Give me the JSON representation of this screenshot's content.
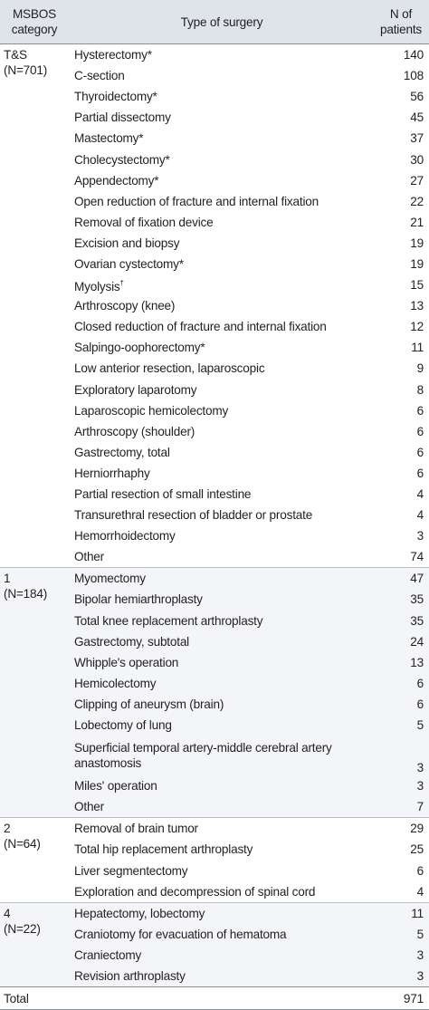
{
  "header": {
    "col1": "MSBOS category",
    "col2": "Type of surgery",
    "col3": "N of patients"
  },
  "groups": [
    {
      "category": "T&S",
      "n": "(N=701)",
      "rows": [
        {
          "surgery": "Hysterectomy*",
          "n": "140"
        },
        {
          "surgery": "C-section",
          "n": "108"
        },
        {
          "surgery": "Thyroidectomy*",
          "n": "56"
        },
        {
          "surgery": "Partial dissectomy",
          "n": "45"
        },
        {
          "surgery": "Mastectomy*",
          "n": "37"
        },
        {
          "surgery": "Cholecystectomy*",
          "n": "30"
        },
        {
          "surgery": "Appendectomy*",
          "n": "27"
        },
        {
          "surgery": "Open reduction of fracture and internal fixation",
          "n": "22"
        },
        {
          "surgery": "Removal of fixation device",
          "n": "21"
        },
        {
          "surgery": "Excision and biopsy",
          "n": "19"
        },
        {
          "surgery": "Ovarian cystectomy*",
          "n": "19"
        },
        {
          "surgery": "Myolysis",
          "sup": "†",
          "n": "15"
        },
        {
          "surgery": "Arthroscopy (knee)",
          "n": "13"
        },
        {
          "surgery": "Closed reduction of fracture and internal fixation",
          "n": "12"
        },
        {
          "surgery": "Salpingo-oophorectomy*",
          "n": "11"
        },
        {
          "surgery": "Low anterior resection, laparoscopic",
          "n": "9"
        },
        {
          "surgery": "Exploratory laparotomy",
          "n": "8"
        },
        {
          "surgery": "Laparoscopic hemicolectomy",
          "n": "6"
        },
        {
          "surgery": "Arthroscopy (shoulder)",
          "n": "6"
        },
        {
          "surgery": "Gastrectomy, total",
          "n": "6"
        },
        {
          "surgery": "Herniorrhaphy",
          "n": "6"
        },
        {
          "surgery": "Partial resection of small intestine",
          "n": "4"
        },
        {
          "surgery": "Transurethral resection of bladder or prostate",
          "n": "4"
        },
        {
          "surgery": "Hemorrhoidectomy",
          "n": "3"
        },
        {
          "surgery": "Other",
          "n": "74"
        }
      ]
    },
    {
      "category": "1",
      "n": "(N=184)",
      "rows": [
        {
          "surgery": "Myomectomy",
          "n": "47"
        },
        {
          "surgery": "Bipolar hemiarthroplasty",
          "n": "35"
        },
        {
          "surgery": "Total knee replacement arthroplasty",
          "n": "35"
        },
        {
          "surgery": "Gastrectomy, subtotal",
          "n": "24"
        },
        {
          "surgery": "Whipple's operation",
          "n": "13"
        },
        {
          "surgery": "Hemicolectomy",
          "n": "6"
        },
        {
          "surgery": "Clipping of aneurysm (brain)",
          "n": "6"
        },
        {
          "surgery": "Lobectomy of lung",
          "n": "5"
        },
        {
          "surgery": "Superficial temporal artery-middle cerebral artery anastomosis",
          "n": "3",
          "tall": true
        },
        {
          "surgery": "Miles' operation",
          "n": "3"
        },
        {
          "surgery": "Other",
          "n": "7"
        }
      ]
    },
    {
      "category": "2",
      "n": "(N=64)",
      "rows": [
        {
          "surgery": "Removal of brain tumor",
          "n": "29"
        },
        {
          "surgery": "Total hip replacement arthroplasty",
          "n": "25"
        },
        {
          "surgery": "Liver segmentectomy",
          "n": "6"
        },
        {
          "surgery": "Exploration and decompression of spinal cord",
          "n": "4"
        }
      ]
    },
    {
      "category": "4",
      "n": "(N=22)",
      "rows": [
        {
          "surgery": "Hepatectomy, lobectomy",
          "n": "11"
        },
        {
          "surgery": "Craniotomy for evacuation of hematoma",
          "n": "5"
        },
        {
          "surgery": "Craniectomy",
          "n": "3"
        },
        {
          "surgery": "Revision arthroplasty",
          "n": "3"
        }
      ]
    }
  ],
  "total": {
    "label": "Total",
    "n": "971"
  }
}
